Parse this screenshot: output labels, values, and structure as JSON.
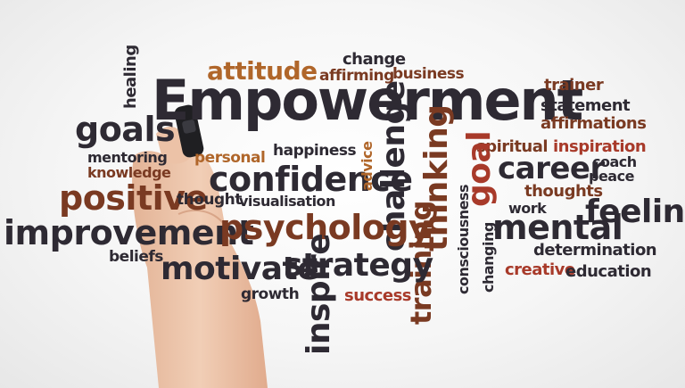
{
  "title": "Empowerment",
  "words": {
    "attitude": "attitude",
    "change": "change",
    "affirming": "affirming",
    "business": "business",
    "healing": "healing",
    "trainer": "trainer",
    "statement": "statement",
    "affirmations": "affirmations",
    "goals": "goals",
    "mentoring": "mentoring",
    "knowledge": "knowledge",
    "personal": "personal",
    "happiness": "happiness",
    "spiritual": "spiritual",
    "inspiration": "inspiration",
    "confidence": "confidence",
    "advice": "advice",
    "challenge": "challenge",
    "thinking": "thinking",
    "goal": "goal",
    "career": "career",
    "coach": "coach",
    "peace": "peace",
    "positive": "positive",
    "thought": "thought",
    "visualisation": "visualisation",
    "thoughts": "thoughts",
    "work": "work",
    "feeling": "feeling",
    "improvement": "improvement",
    "psychology": "psychology",
    "training": "training",
    "consciousness": "consciousness",
    "mental": "mental",
    "beliefs": "beliefs",
    "changing": "changing",
    "determination": "determination",
    "motivate": "motivate",
    "strategy": "strategy",
    "creative": "creative",
    "education": "education",
    "inspire": "inspire",
    "growth": "growth",
    "success": "success"
  },
  "colors": {
    "dark": "#2e2a33",
    "brown": "#7a3a22",
    "orange": "#b0662a",
    "red": "#a83a2a"
  }
}
